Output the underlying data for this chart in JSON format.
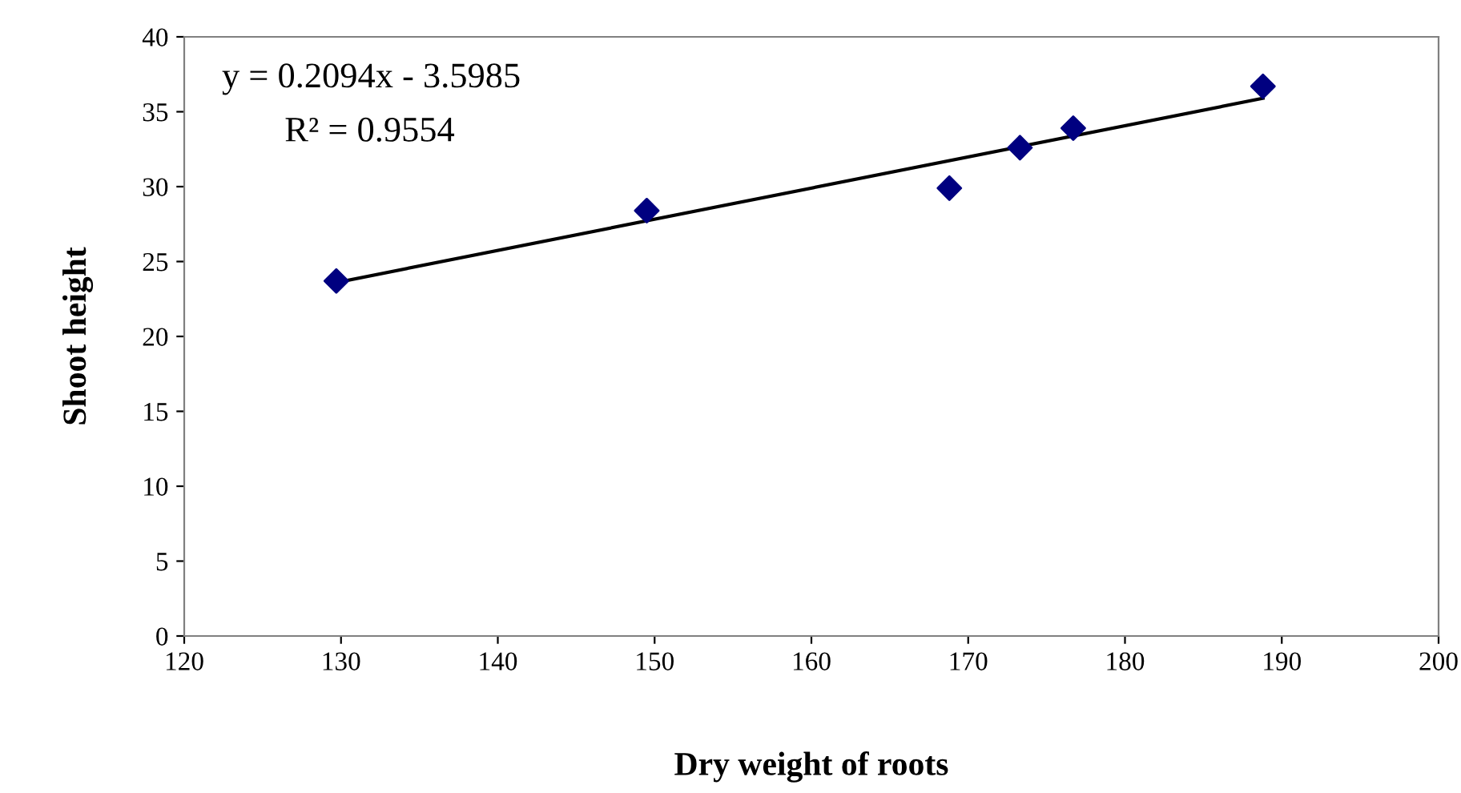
{
  "chart_data": {
    "type": "scatter",
    "xlabel": "Dry weight of roots",
    "ylabel": "Shoot height",
    "xlim": [
      120,
      200
    ],
    "xticks": [
      120,
      130,
      140,
      150,
      160,
      170,
      180,
      190,
      200
    ],
    "ylim": [
      0,
      40
    ],
    "yticks": [
      0,
      5,
      10,
      15,
      20,
      25,
      30,
      35,
      40
    ],
    "grid": false,
    "legend": false,
    "marker": "diamond",
    "annotations": [
      "y = 0.2094x - 3.5985",
      "R² = 0.9554"
    ],
    "series": [
      {
        "color": "#000080",
        "x": [
          129.7,
          149.5,
          168.8,
          173.3,
          176.7,
          188.8
        ],
        "values": [
          23.7,
          28.4,
          29.9,
          32.6,
          33.9,
          36.7
        ]
      },
      {
        "type": "line",
        "color": "#000000",
        "marker": "none",
        "line_style": "solid",
        "x": [
          129.7,
          188.8
        ],
        "values": [
          23.6,
          35.9
        ]
      }
    ]
  }
}
